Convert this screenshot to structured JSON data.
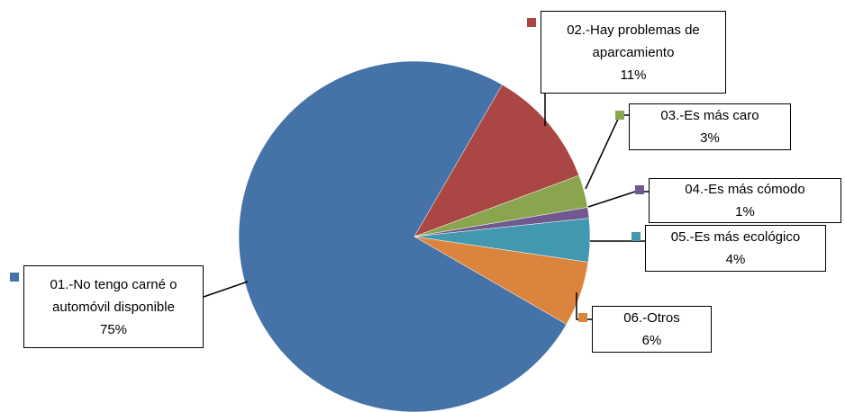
{
  "chart_data": {
    "type": "pie",
    "categories": [
      "01.-No tengo carné o automóvil disponible",
      "02.-Hay problemas de aparcamiento",
      "03.-Es más caro",
      "04.-Es más cómodo",
      "05.-Es más ecológico",
      "06.-Otros"
    ],
    "values": [
      75,
      11,
      3,
      1,
      4,
      6
    ],
    "value_labels": [
      "75%",
      "11%",
      "3%",
      "1%",
      "4%",
      "6%"
    ],
    "colors": [
      "#4572a7",
      "#aa4643",
      "#89a54e",
      "#71588f",
      "#4198af",
      "#db843d"
    ]
  }
}
